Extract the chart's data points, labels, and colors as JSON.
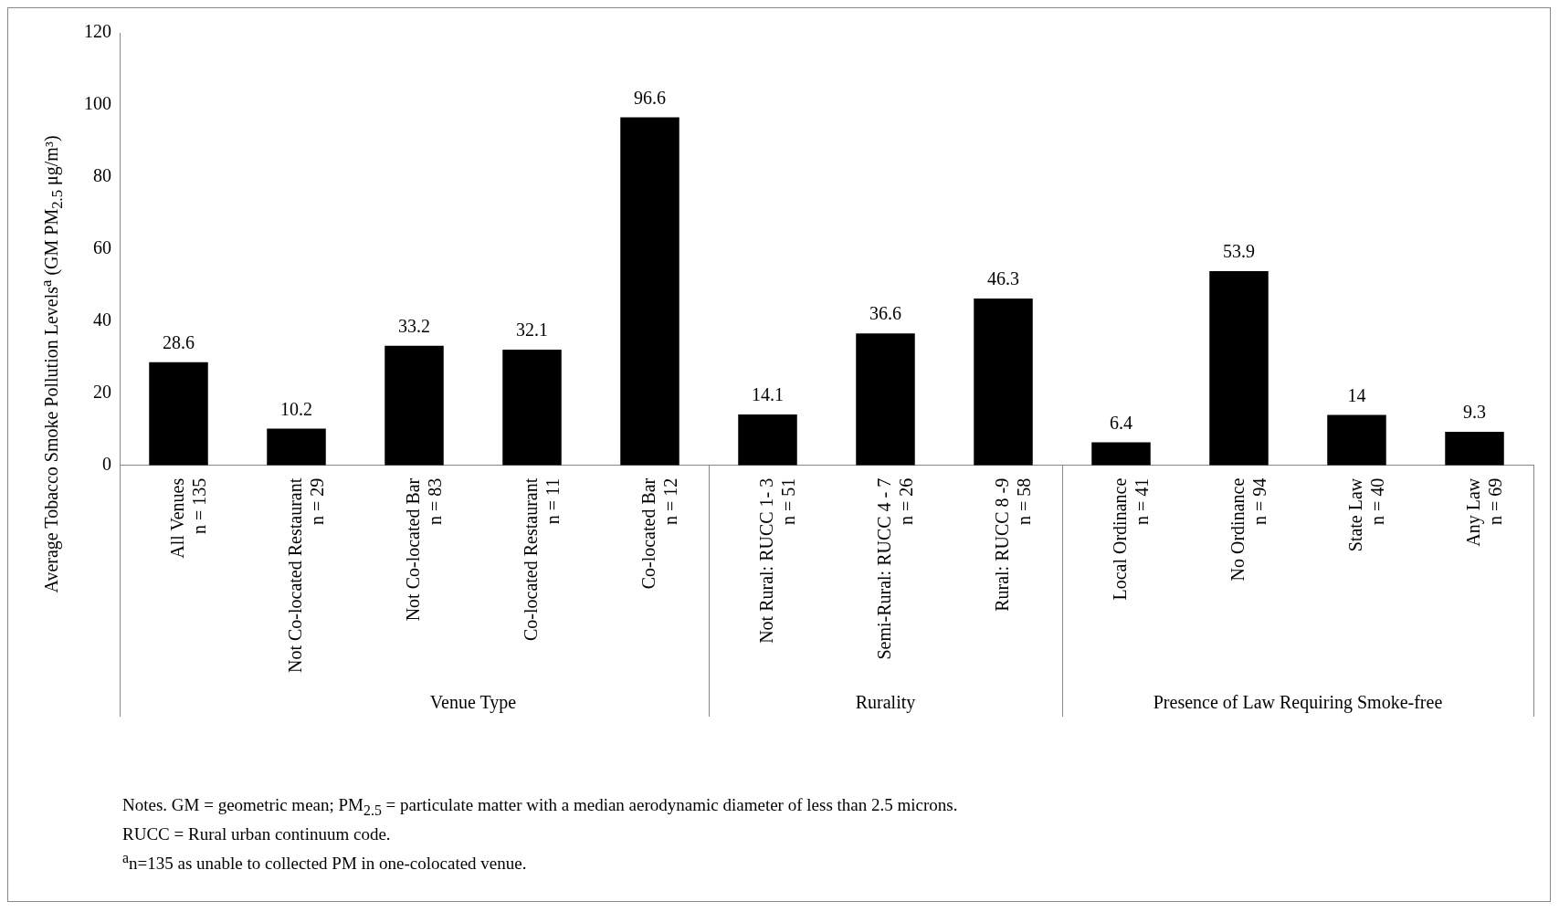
{
  "chart_data": {
    "type": "bar",
    "ylabel": "Average Tobacco Smoke Pollution Levels$^{a}$ (GM PM$_{2.5}$ μg/m³)",
    "categories": [
      "All Venues\nn = 135",
      "Not Co-located Restaurant\nn = 29",
      "Not Co-located Bar\nn = 83",
      "Co-located Restaurant\nn = 11",
      "Co-located Bar\nn = 12",
      "Not Rural: RUCC 1- 3\nn = 51",
      "Semi-Rural: RUCC 4 - 7\nn = 26",
      "Rural: RUCC 8 -9\nn = 58",
      "Local Ordinance\nn = 41",
      "No Ordinance\nn = 94",
      "State Law\nn = 40",
      "Any Law\nn = 69"
    ],
    "values": [
      28.6,
      10.2,
      33.2,
      32.1,
      96.6,
      14.1,
      36.6,
      46.3,
      6.4,
      53.9,
      14,
      9.3
    ],
    "color": "#000000",
    "ylim": [
      0,
      120
    ],
    "yticks": [
      0,
      20,
      40,
      60,
      80,
      100,
      120
    ],
    "grid": false,
    "data_labels": true,
    "legend": false,
    "annotations": [
      "Venue Type",
      "Rurality",
      "Presence of Law Requiring Smoke-free",
      "Notes. GM = geometric mean; PM$_{2.5}$ = particulate matter with a median aerodynamic diameter of less than  2.5 microns.",
      "RUCC = Rural urban continuum code.",
      "$^{a}$n=135 as unable to collected PM in one-colocated venue."
    ]
  }
}
